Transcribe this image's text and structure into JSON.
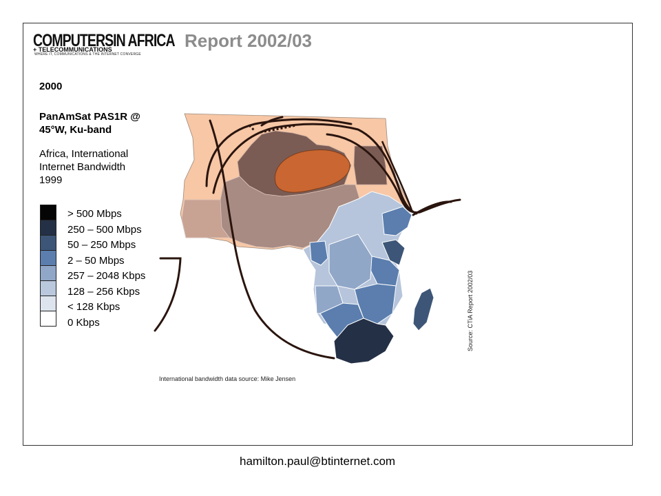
{
  "header": {
    "logo_line1": "COMPUTERSIN AFRICA",
    "logo_line2": "+ TELECOMMUNICATIONS",
    "logo_tagline": "WHERE IT, COMMUNICATIONS & THE INTERNET CONVERGE",
    "title": "Report 2002/03"
  },
  "map_info": {
    "year": "2000",
    "satellite_line1": "PanAmSat PAS1R @",
    "satellite_line2": "45°W, Ku-band",
    "subtitle_line1": "Africa, International",
    "subtitle_line2": "Internet Bandwidth",
    "subtitle_line3": "1999"
  },
  "legend": {
    "items": [
      {
        "label": "> 500 Mbps",
        "color": "#050505"
      },
      {
        "label": "250 – 500 Mbps",
        "color": "#243046"
      },
      {
        "label": "50 – 250 Mbps",
        "color": "#3d5677"
      },
      {
        "label": "2 – 50 Mbps",
        "color": "#5b7eae"
      },
      {
        "label": "257 – 2048 Kbps",
        "color": "#91a7c8"
      },
      {
        "label": "128 – 256 Kbps",
        "color": "#b9c8dd"
      },
      {
        "label": "< 128 Kbps",
        "color": "#dde4ee"
      },
      {
        "label": "0 Kbps",
        "color": "#ffffff"
      }
    ]
  },
  "sources": {
    "vertical": "Source: CTiA Report 2002/03",
    "bottom": "International bandwidth data source: Mike Jensen"
  },
  "footer": {
    "email": "hamilton.paul@btinternet.com"
  }
}
